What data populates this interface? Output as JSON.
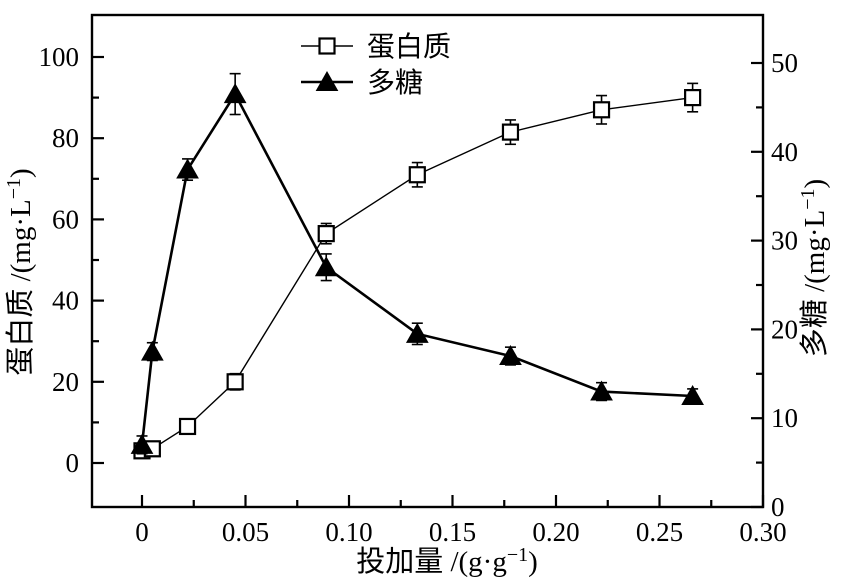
{
  "chart_data": {
    "type": "line",
    "title": "",
    "xlabel": "投加量 /(g·g⁻¹)",
    "ylabel_left": "蛋白质 /(mg·L⁻¹)",
    "ylabel_right": "多糖 /(mg·L⁻¹)",
    "x": [
      0,
      0.005,
      0.022,
      0.045,
      0.089,
      0.133,
      0.178,
      0.222,
      0.266
    ],
    "series": [
      {
        "id": "protein",
        "name": "蛋白质",
        "axis": "left",
        "marker": "open-square",
        "line": "thin",
        "values": [
          3,
          3.5,
          9,
          20,
          56.5,
          71,
          81.5,
          87,
          90
        ],
        "errors": [
          1.5,
          1.5,
          1.5,
          2,
          2.5,
          3,
          3,
          3.5,
          3.5
        ]
      },
      {
        "id": "polysaccharide",
        "name": "多糖",
        "axis": "right",
        "marker": "filled-triangle",
        "line": "thick",
        "values": [
          7,
          17.5,
          38,
          46.5,
          27,
          19.5,
          17,
          13,
          12.5
        ],
        "errors": [
          1,
          1,
          1.2,
          2.3,
          1.5,
          1.2,
          1,
          1,
          0.8
        ]
      }
    ],
    "x_axis": {
      "range": [
        -0.024,
        0.3
      ],
      "major_ticks": [
        0,
        0.05,
        0.1,
        0.15,
        0.2,
        0.25,
        0.3
      ],
      "tick_labels": [
        "0",
        "0.05",
        "0.10",
        "0.15",
        "0.20",
        "0.25",
        "0.30"
      ],
      "minor_ticks": [
        0.025,
        0.075,
        0.125,
        0.175,
        0.225,
        0.275
      ]
    },
    "left_axis": {
      "range": [
        -10.8,
        110.4
      ],
      "major_ticks": [
        0,
        20,
        40,
        60,
        80,
        100
      ],
      "tick_labels": [
        "0",
        "20",
        "40",
        "60",
        "80",
        "100"
      ],
      "minor_ticks": [
        10,
        30,
        50,
        70,
        90
      ]
    },
    "right_axis": {
      "range": [
        0,
        55.4
      ],
      "major_ticks": [
        0,
        10,
        20,
        30,
        40,
        50
      ],
      "tick_labels": [
        "0",
        "10",
        "20",
        "30",
        "40",
        "50"
      ],
      "minor_ticks": [
        5,
        15,
        25,
        35,
        45
      ]
    },
    "legend": {
      "position": "top-center-inside",
      "items": [
        {
          "label": "蛋白质",
          "marker": "open-square",
          "line": "thin"
        },
        {
          "label": "多糖",
          "marker": "filled-triangle",
          "line": "thick"
        }
      ]
    },
    "grid": false,
    "colors": {
      "foreground": "#000000",
      "background": "#ffffff",
      "marker_fill_open": "#ffffff"
    }
  }
}
